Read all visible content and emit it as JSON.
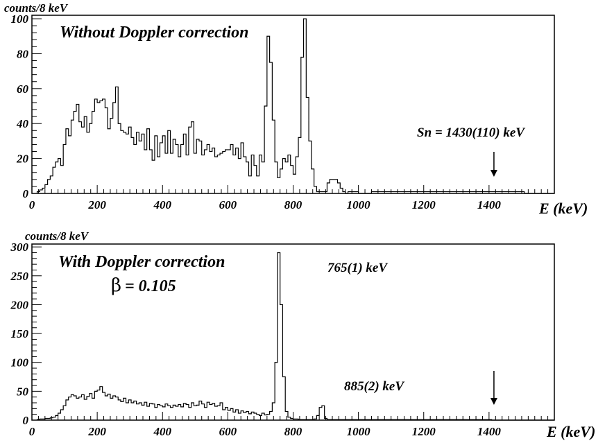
{
  "chart_data": [
    {
      "type": "histogram",
      "title": "Without Doppler correction",
      "ylabel": "counts/8 keV",
      "xlabel": "E (keV)",
      "xlim": [
        0,
        1600
      ],
      "ylim": [
        0,
        102
      ],
      "bin_width": 8,
      "xticks": [
        "0",
        "200",
        "400",
        "600",
        "800",
        "1000",
        "1200",
        "1400"
      ],
      "yticks": [
        "0",
        "20",
        "40",
        "60",
        "80",
        "100"
      ],
      "annotations": [
        {
          "text": "Sn = 1430(110) keV",
          "arrow_x": 1415
        }
      ],
      "x": [
        16,
        24,
        32,
        40,
        48,
        56,
        64,
        72,
        80,
        88,
        96,
        104,
        112,
        120,
        128,
        136,
        144,
        152,
        160,
        168,
        176,
        184,
        192,
        200,
        208,
        216,
        224,
        232,
        240,
        248,
        256,
        264,
        272,
        280,
        288,
        296,
        304,
        312,
        320,
        328,
        336,
        344,
        352,
        360,
        368,
        376,
        384,
        392,
        400,
        408,
        416,
        424,
        432,
        440,
        448,
        456,
        464,
        472,
        480,
        488,
        496,
        504,
        512,
        520,
        528,
        536,
        544,
        552,
        560,
        568,
        576,
        584,
        592,
        600,
        608,
        616,
        624,
        632,
        640,
        648,
        656,
        664,
        672,
        680,
        688,
        696,
        704,
        712,
        720,
        728,
        736,
        744,
        752,
        760,
        768,
        776,
        784,
        792,
        800,
        808,
        816,
        824,
        832,
        840,
        848,
        856,
        864,
        872,
        880,
        888,
        896,
        904,
        912,
        920,
        928,
        936,
        944,
        952,
        960,
        968,
        976,
        984,
        992,
        1000,
        1040,
        1100,
        1160,
        1240,
        1320,
        1400,
        1460,
        1500
      ],
      "values": [
        1,
        2,
        3,
        5,
        8,
        10,
        15,
        18,
        20,
        16,
        28,
        37,
        33,
        42,
        47,
        51,
        41,
        38,
        44,
        35,
        40,
        47,
        54,
        52,
        53,
        54,
        49,
        37,
        43,
        52,
        61,
        40,
        36,
        35,
        34,
        38,
        32,
        28,
        35,
        30,
        34,
        25,
        37,
        25,
        19,
        33,
        21,
        29,
        33,
        23,
        36,
        23,
        31,
        28,
        21,
        28,
        34,
        22,
        38,
        41,
        23,
        31,
        30,
        22,
        25,
        28,
        24,
        26,
        21,
        22,
        23,
        24,
        25,
        25,
        28,
        22,
        26,
        20,
        29,
        21,
        18,
        10,
        22,
        16,
        10,
        22,
        18,
        50,
        90,
        75,
        42,
        18,
        9,
        14,
        20,
        18,
        22,
        16,
        11,
        21,
        32,
        78,
        100,
        55,
        30,
        14,
        4,
        1,
        1,
        1,
        1,
        6,
        8,
        8,
        8,
        6,
        3,
        1,
        0,
        1,
        1,
        1,
        1,
        0,
        1,
        1,
        1,
        1,
        1,
        1,
        1,
        1
      ]
    },
    {
      "type": "histogram",
      "title": "With Doppler correction",
      "beta_label": "β",
      "beta_value": "= 0.105",
      "ylabel": "counts/8 keV",
      "xlabel": "E (keV)",
      "xlim": [
        0,
        1600
      ],
      "ylim": [
        0,
        305
      ],
      "bin_width": 8,
      "xticks": [
        "0",
        "200",
        "400",
        "600",
        "800",
        "1000",
        "1200",
        "1400"
      ],
      "yticks": [
        "0",
        "50",
        "100",
        "150",
        "200",
        "250",
        "300"
      ],
      "annotations": [
        {
          "text": "765(1) keV",
          "x": 765
        },
        {
          "text": "885(2) keV",
          "x": 885
        }
      ],
      "arrow_x": 1415,
      "x": [
        16,
        24,
        32,
        40,
        48,
        56,
        64,
        72,
        80,
        88,
        96,
        104,
        112,
        120,
        128,
        136,
        144,
        152,
        160,
        168,
        176,
        184,
        192,
        200,
        208,
        216,
        224,
        232,
        240,
        248,
        256,
        264,
        272,
        280,
        288,
        296,
        304,
        312,
        320,
        328,
        336,
        344,
        352,
        360,
        368,
        376,
        384,
        392,
        400,
        408,
        416,
        424,
        432,
        440,
        448,
        456,
        464,
        472,
        480,
        488,
        496,
        504,
        512,
        520,
        528,
        536,
        544,
        552,
        560,
        568,
        576,
        584,
        592,
        600,
        608,
        616,
        624,
        632,
        640,
        648,
        656,
        664,
        672,
        680,
        688,
        696,
        704,
        712,
        720,
        728,
        736,
        744,
        752,
        760,
        768,
        776,
        784,
        792,
        800,
        808,
        816,
        824,
        832,
        840,
        848,
        856,
        864,
        872,
        880,
        888,
        896,
        904,
        1000,
        1100,
        1200,
        1300,
        1400
      ],
      "values": [
        1,
        2,
        2,
        3,
        3,
        4,
        5,
        8,
        12,
        18,
        25,
        35,
        40,
        44,
        42,
        38,
        40,
        44,
        36,
        41,
        46,
        38,
        50,
        52,
        58,
        48,
        42,
        45,
        38,
        42,
        40,
        35,
        32,
        38,
        30,
        35,
        30,
        33,
        28,
        30,
        26,
        31,
        24,
        29,
        28,
        22,
        27,
        25,
        23,
        28,
        25,
        22,
        26,
        24,
        27,
        23,
        29,
        27,
        22,
        30,
        25,
        26,
        33,
        28,
        22,
        31,
        27,
        29,
        24,
        25,
        30,
        18,
        22,
        17,
        20,
        14,
        18,
        12,
        16,
        13,
        15,
        11,
        14,
        12,
        10,
        8,
        12,
        9,
        10,
        15,
        30,
        100,
        290,
        200,
        75,
        15,
        5,
        3,
        2,
        2,
        1,
        1,
        1,
        1,
        1,
        1,
        2,
        8,
        22,
        25,
        3,
        1,
        1,
        1,
        1,
        1,
        1
      ]
    }
  ]
}
